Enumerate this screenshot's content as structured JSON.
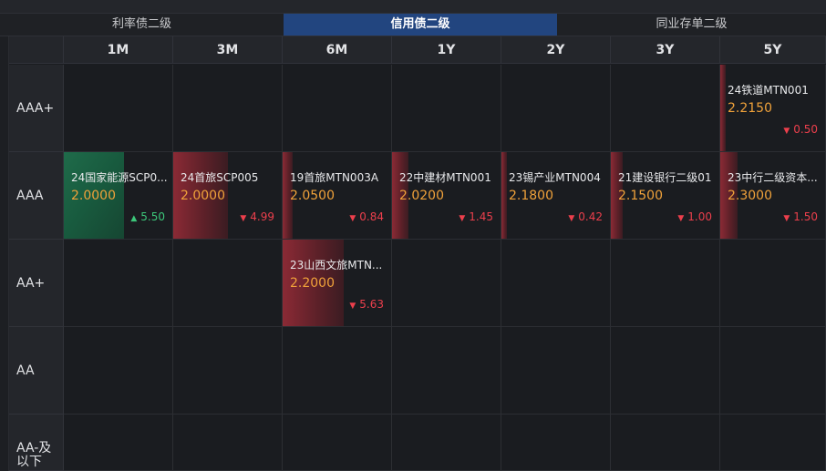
{
  "tabs": [
    {
      "label": "利率债二级",
      "active": false
    },
    {
      "label": "信用债二级",
      "active": true
    },
    {
      "label": "同业存单二级",
      "active": false
    }
  ],
  "columns": [
    "1M",
    "3M",
    "6M",
    "1Y",
    "2Y",
    "3Y",
    "5Y"
  ],
  "rows": [
    "AAA+",
    "AAA",
    "AA+",
    "AA",
    "AA-及以下"
  ],
  "cells": {
    "r0c6": {
      "name": "24铁道MTN001",
      "yield": "2.2150",
      "change": "0.50",
      "direction": "down",
      "bar_color": "red",
      "intensity": 0.05
    },
    "r1c0": {
      "name": "24国家能源SCP0...",
      "yield": "2.0000",
      "change": "5.50",
      "direction": "up",
      "bar_color": "green",
      "intensity": 0.55
    },
    "r1c1": {
      "name": "24首旅SCP005",
      "yield": "2.0000",
      "change": "4.99",
      "direction": "down",
      "bar_color": "red",
      "intensity": 0.5
    },
    "r1c2": {
      "name": "19首旅MTN003A",
      "yield": "2.0500",
      "change": "0.84",
      "direction": "down",
      "bar_color": "red",
      "intensity": 0.09
    },
    "r1c3": {
      "name": "22中建材MTN001",
      "yield": "2.0200",
      "change": "1.45",
      "direction": "down",
      "bar_color": "red",
      "intensity": 0.15
    },
    "r1c4": {
      "name": "23锡产业MTN004",
      "yield": "2.1800",
      "change": "0.42",
      "direction": "down",
      "bar_color": "red",
      "intensity": 0.05
    },
    "r1c5": {
      "name": "21建设银行二级01",
      "yield": "2.1500",
      "change": "1.00",
      "direction": "down",
      "bar_color": "red",
      "intensity": 0.11
    },
    "r1c6": {
      "name": "23中行二级资本...",
      "yield": "2.3000",
      "change": "1.50",
      "direction": "down",
      "bar_color": "red",
      "intensity": 0.16
    },
    "r2c2": {
      "name": "23山西文旅MTN...",
      "yield": "2.2000",
      "change": "5.63",
      "direction": "down",
      "bar_color": "red",
      "intensity": 0.56
    }
  }
}
